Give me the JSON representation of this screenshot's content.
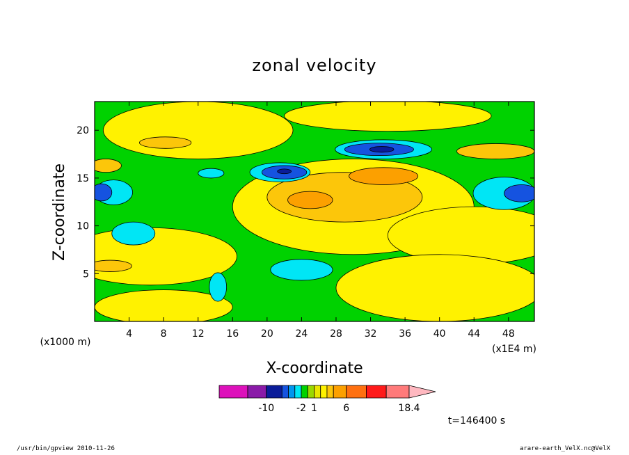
{
  "colors": {
    "c_m12": "#dd11bb",
    "c_m10": "#8a1aa8",
    "c_m6": "#0a1c99",
    "c_m2": "#1553e0",
    "c_m1": "#0096ee",
    "c_m05": "#00e6f5",
    "c_0": "#00d200",
    "c_05": "#9bd800",
    "c_1": "#eae600",
    "c_2": "#fff200",
    "c_3": "#fcc60a",
    "c_4": "#fca000",
    "c_6": "#ff7010",
    "c_10": "#ff1a1a",
    "c_14": "#ff7a7a",
    "c_18": "#ffb8c0",
    "background_field": "#00d200",
    "positive_field": "#ffff33",
    "plot_frame": "#000000"
  },
  "chart_data": {
    "type": "heatmap",
    "title": "zonal velocity",
    "xlabel": "X-coordinate",
    "ylabel": "Z-coordinate",
    "x_unit": "(x1E4 m)",
    "y_unit": "(x1000 m)",
    "xlim": [
      0,
      51
    ],
    "ylim": [
      0,
      23
    ],
    "x_ticks": [
      4,
      8,
      12,
      16,
      20,
      24,
      28,
      32,
      36,
      40,
      44,
      48
    ],
    "y_ticks": [
      5,
      10,
      15,
      20
    ],
    "colorbar": {
      "levels": [
        "-10",
        "-2",
        "1",
        "6",
        "18.4"
      ],
      "bins": [
        "c_m12",
        "c_m10",
        "c_m6",
        "c_m2",
        "c_m1",
        "c_m05",
        "c_0",
        "c_05",
        "c_1",
        "c_2",
        "c_3",
        "c_4",
        "c_6",
        "c_10",
        "c_14",
        "c_18"
      ],
      "extend": "max"
    },
    "regions": [
      {
        "level": "c_2",
        "cx": 6.5,
        "cy": 6.8,
        "rx": 10,
        "ry": 3
      },
      {
        "level": "c_2",
        "cx": 30,
        "cy": 12,
        "rx": 14,
        "ry": 5
      },
      {
        "level": "c_2",
        "cx": 44,
        "cy": 9,
        "rx": 10,
        "ry": 3
      },
      {
        "level": "c_2",
        "cx": 40,
        "cy": 3.5,
        "rx": 12,
        "ry": 3.5
      },
      {
        "level": "c_2",
        "cx": 34,
        "cy": 21.5,
        "rx": 12,
        "ry": 1.6
      },
      {
        "level": "c_2",
        "cx": 12,
        "cy": 20,
        "rx": 11,
        "ry": 3
      },
      {
        "level": "c_2",
        "cx": 8,
        "cy": 1.5,
        "rx": 8,
        "ry": 1.8
      },
      {
        "level": "c_3",
        "cx": 8.2,
        "cy": 18.7,
        "rx": 3,
        "ry": 0.6
      },
      {
        "level": "c_3",
        "cx": 46.5,
        "cy": 17.8,
        "rx": 4.5,
        "ry": 0.8
      },
      {
        "level": "c_3",
        "cx": 1.3,
        "cy": 16.3,
        "rx": 1.8,
        "ry": 0.7
      },
      {
        "level": "c_3",
        "cx": 1.8,
        "cy": 5.8,
        "rx": 2.5,
        "ry": 0.6
      },
      {
        "level": "c_3",
        "cx": 29,
        "cy": 13,
        "rx": 9,
        "ry": 2.6
      },
      {
        "level": "c_4",
        "cx": 33.5,
        "cy": 15.2,
        "rx": 4,
        "ry": 0.9
      },
      {
        "level": "c_4",
        "cx": 25,
        "cy": 12.7,
        "rx": 2.6,
        "ry": 0.9
      },
      {
        "level": "c_m05",
        "cx": 24,
        "cy": 5.4,
        "rx": 3.6,
        "ry": 1.1
      },
      {
        "level": "c_m05",
        "cx": 4.5,
        "cy": 9.2,
        "rx": 2.5,
        "ry": 1.2
      },
      {
        "level": "c_m05",
        "cx": 47.5,
        "cy": 13.4,
        "rx": 3.6,
        "ry": 1.7
      },
      {
        "level": "c_m05",
        "cx": 2.2,
        "cy": 13.5,
        "rx": 2.2,
        "ry": 1.3
      },
      {
        "level": "c_m05",
        "cx": 21.5,
        "cy": 15.6,
        "rx": 3.5,
        "ry": 1
      },
      {
        "level": "c_m05",
        "cx": 33.5,
        "cy": 18,
        "rx": 5.6,
        "ry": 1
      },
      {
        "level": "c_m05",
        "cx": 14.3,
        "cy": 3.6,
        "rx": 1,
        "ry": 1.5
      },
      {
        "level": "c_m05",
        "cx": 13.5,
        "cy": 15.5,
        "rx": 1.5,
        "ry": 0.5
      },
      {
        "level": "c_m2",
        "cx": 22,
        "cy": 15.6,
        "rx": 2.6,
        "ry": 0.7
      },
      {
        "level": "c_m2",
        "cx": 33,
        "cy": 18,
        "rx": 4,
        "ry": 0.65
      },
      {
        "level": "c_m2",
        "cx": 49.5,
        "cy": 13.4,
        "rx": 2,
        "ry": 0.9
      },
      {
        "level": "c_m2",
        "cx": 0.8,
        "cy": 13.5,
        "rx": 1.2,
        "ry": 0.9
      },
      {
        "level": "c_m6",
        "cx": 33.3,
        "cy": 18,
        "rx": 1.4,
        "ry": 0.3
      },
      {
        "level": "c_m6",
        "cx": 22,
        "cy": 15.7,
        "rx": 0.8,
        "ry": 0.25
      }
    ]
  },
  "time_label": "t=146400 s",
  "footer": {
    "left": "/usr/bin/gpview   2010-11-26",
    "right": "arare-earth_VelX.nc@VelX"
  }
}
